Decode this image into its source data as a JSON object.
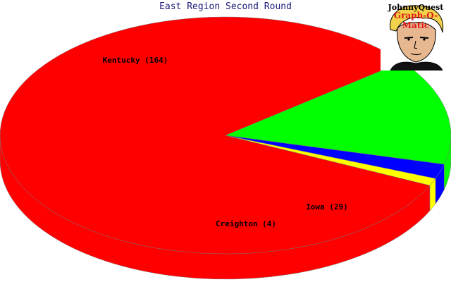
{
  "chart_data": {
    "type": "pie",
    "title": "East Region Second Round",
    "slices": [
      {
        "name": "Kentucky",
        "value": 164,
        "label": "Kentucky (164)",
        "color": "#ff0000"
      },
      {
        "name": "Iowa",
        "value": 29,
        "label": "Iowa (29)",
        "color": "#00ff00"
      },
      {
        "name": "Creighton",
        "value": 4,
        "label": "Creighton (4)",
        "color": "#0000ff"
      },
      {
        "name": "",
        "value": 2,
        "label": "",
        "color": "#ffff00"
      }
    ],
    "style": "3d-pie"
  },
  "logo": {
    "line1": "JohnnyQuest",
    "line2": "Graph-O-Matic",
    "icon": "boy-face-icon"
  }
}
